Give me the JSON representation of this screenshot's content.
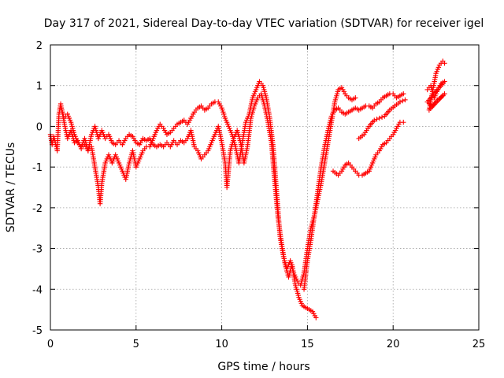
{
  "chart_data": {
    "type": "scatter",
    "title": "Day 317 of 2021, Sidereal Day-to-day VTEC variation (SDTVAR) for receiver igel",
    "xlabel": "GPS time / hours",
    "ylabel": "SDTVAR / TECUs",
    "xlim": [
      0,
      25
    ],
    "ylim": [
      -5,
      2
    ],
    "xticks": [
      0,
      5,
      10,
      15,
      20,
      25
    ],
    "yticks": [
      -5,
      -4,
      -3,
      -2,
      -1,
      0,
      1,
      2
    ],
    "xtick_labels": [
      "0",
      "5",
      "10",
      "15",
      "20",
      "25"
    ],
    "ytick_labels": [
      "-5",
      "-4",
      "-3",
      "-2",
      "-1",
      "0",
      "1",
      "2"
    ],
    "grid": true,
    "marker": "+",
    "color": "#ff0000",
    "series": [
      {
        "points": [
          [
            0.0,
            -0.2
          ],
          [
            0.1,
            -0.45
          ],
          [
            0.2,
            -0.25
          ],
          [
            0.4,
            -0.6
          ],
          [
            0.5,
            0.3
          ],
          [
            0.6,
            0.55
          ],
          [
            0.8,
            0.1
          ],
          [
            1.0,
            -0.3
          ],
          [
            1.2,
            -0.1
          ],
          [
            1.4,
            -0.4
          ],
          [
            1.6,
            -0.35
          ],
          [
            1.8,
            -0.55
          ],
          [
            2.0,
            -0.45
          ],
          [
            2.2,
            -0.6
          ],
          [
            2.4,
            -0.2
          ],
          [
            2.6,
            0.0
          ],
          [
            2.8,
            -0.3
          ],
          [
            3.0,
            -0.1
          ],
          [
            3.2,
            -0.3
          ],
          [
            3.4,
            -0.2
          ],
          [
            3.6,
            -0.4
          ],
          [
            3.8,
            -0.45
          ],
          [
            4.0,
            -0.35
          ],
          [
            4.2,
            -0.45
          ],
          [
            4.4,
            -0.3
          ],
          [
            4.6,
            -0.2
          ],
          [
            4.8,
            -0.25
          ],
          [
            5.0,
            -0.4
          ],
          [
            5.2,
            -0.45
          ],
          [
            5.4,
            -0.3
          ],
          [
            5.6,
            -0.35
          ],
          [
            5.8,
            -0.3
          ],
          [
            6.0,
            -0.45
          ],
          [
            6.2,
            -0.5
          ],
          [
            6.4,
            -0.45
          ],
          [
            6.6,
            -0.5
          ],
          [
            6.8,
            -0.4
          ],
          [
            7.0,
            -0.5
          ],
          [
            7.2,
            -0.35
          ],
          [
            7.4,
            -0.45
          ],
          [
            7.6,
            -0.35
          ],
          [
            7.8,
            -0.4
          ],
          [
            8.0,
            -0.3
          ],
          [
            8.2,
            -0.1
          ],
          [
            8.4,
            -0.5
          ],
          [
            8.6,
            -0.6
          ],
          [
            8.8,
            -0.8
          ],
          [
            9.0,
            -0.7
          ],
          [
            9.2,
            -0.6
          ],
          [
            9.4,
            -0.4
          ],
          [
            9.6,
            -0.2
          ],
          [
            9.8,
            0.0
          ],
          [
            10.0,
            -0.4
          ],
          [
            10.2,
            -0.9
          ],
          [
            10.3,
            -1.5
          ],
          [
            10.5,
            -0.6
          ],
          [
            10.7,
            -0.3
          ],
          [
            10.9,
            -0.1
          ],
          [
            11.1,
            -0.4
          ],
          [
            11.3,
            -0.9
          ],
          [
            11.5,
            -0.5
          ],
          [
            11.7,
            0.2
          ],
          [
            11.9,
            0.5
          ],
          [
            12.1,
            0.7
          ],
          [
            12.3,
            0.8
          ],
          [
            12.5,
            0.5
          ],
          [
            12.7,
            0.1
          ],
          [
            12.9,
            -0.4
          ],
          [
            13.1,
            -1.4
          ],
          [
            13.3,
            -2.3
          ],
          [
            13.5,
            -2.9
          ],
          [
            13.7,
            -3.4
          ],
          [
            13.9,
            -3.7
          ],
          [
            14.1,
            -3.4
          ],
          [
            14.3,
            -3.9
          ],
          [
            14.5,
            -4.2
          ],
          [
            14.7,
            -4.4
          ],
          [
            14.9,
            -4.45
          ],
          [
            15.1,
            -4.5
          ],
          [
            15.3,
            -4.55
          ],
          [
            15.5,
            -4.7
          ]
        ]
      },
      {
        "points": [
          [
            0.6,
            0.5
          ],
          [
            0.8,
            0.2
          ],
          [
            1.0,
            0.3
          ],
          [
            1.2,
            0.1
          ],
          [
            1.4,
            -0.2
          ],
          [
            1.6,
            -0.4
          ],
          [
            1.8,
            -0.5
          ],
          [
            2.0,
            -0.3
          ],
          [
            2.2,
            -0.6
          ],
          [
            2.4,
            -0.5
          ],
          [
            2.6,
            -1.0
          ],
          [
            2.8,
            -1.5
          ],
          [
            2.9,
            -1.9
          ],
          [
            3.0,
            -1.4
          ],
          [
            3.2,
            -0.9
          ],
          [
            3.4,
            -0.7
          ],
          [
            3.6,
            -0.9
          ],
          [
            3.8,
            -0.7
          ],
          [
            4.0,
            -0.9
          ],
          [
            4.2,
            -1.1
          ],
          [
            4.4,
            -1.3
          ],
          [
            4.6,
            -0.9
          ],
          [
            4.8,
            -0.6
          ],
          [
            5.0,
            -1.0
          ],
          [
            5.2,
            -0.8
          ],
          [
            5.4,
            -0.6
          ],
          [
            5.6,
            -0.5
          ],
          [
            5.8,
            -0.5
          ],
          [
            6.0,
            -0.3
          ],
          [
            6.2,
            -0.1
          ],
          [
            6.4,
            0.05
          ],
          [
            6.6,
            -0.05
          ],
          [
            6.8,
            -0.2
          ],
          [
            7.0,
            -0.15
          ],
          [
            7.2,
            -0.05
          ],
          [
            7.4,
            0.05
          ],
          [
            7.6,
            0.1
          ],
          [
            7.8,
            0.15
          ],
          [
            8.0,
            0.05
          ],
          [
            8.2,
            0.2
          ],
          [
            8.4,
            0.35
          ],
          [
            8.6,
            0.45
          ],
          [
            8.8,
            0.5
          ],
          [
            9.0,
            0.4
          ],
          [
            9.2,
            0.45
          ],
          [
            9.4,
            0.55
          ],
          [
            9.6,
            0.6
          ],
          [
            9.8,
            0.6
          ],
          [
            10.0,
            0.45
          ],
          [
            10.2,
            0.2
          ],
          [
            10.4,
            0.0
          ],
          [
            10.6,
            -0.2
          ],
          [
            10.8,
            -0.5
          ],
          [
            11.0,
            -0.9
          ],
          [
            11.2,
            -0.4
          ],
          [
            11.4,
            0.1
          ],
          [
            11.6,
            0.3
          ],
          [
            11.8,
            0.7
          ],
          [
            12.0,
            0.9
          ],
          [
            12.2,
            1.1
          ],
          [
            12.4,
            1.0
          ],
          [
            12.6,
            0.7
          ],
          [
            12.8,
            0.2
          ],
          [
            13.0,
            -0.5
          ],
          [
            13.2,
            -1.6
          ],
          [
            13.4,
            -2.7
          ],
          [
            13.6,
            -3.2
          ],
          [
            13.8,
            -3.5
          ],
          [
            14.0,
            -3.3
          ],
          [
            14.2,
            -3.6
          ],
          [
            14.4,
            -3.8
          ],
          [
            14.6,
            -3.9
          ],
          [
            14.8,
            -3.6
          ],
          [
            15.0,
            -3.0
          ],
          [
            15.2,
            -2.5
          ],
          [
            15.4,
            -2.2
          ],
          [
            15.6,
            -1.8
          ],
          [
            15.8,
            -1.4
          ],
          [
            16.0,
            -0.9
          ],
          [
            16.2,
            -0.4
          ],
          [
            16.4,
            0.1
          ],
          [
            16.6,
            0.6
          ],
          [
            16.8,
            0.9
          ],
          [
            17.0,
            0.95
          ],
          [
            17.2,
            0.8
          ],
          [
            17.4,
            0.7
          ],
          [
            17.6,
            0.65
          ],
          [
            17.8,
            0.7
          ]
        ]
      },
      {
        "points": [
          [
            14.8,
            -4.0
          ],
          [
            15.0,
            -3.3
          ],
          [
            15.2,
            -2.8
          ],
          [
            15.4,
            -2.2
          ],
          [
            15.6,
            -1.6
          ],
          [
            15.8,
            -1.0
          ],
          [
            16.0,
            -0.5
          ],
          [
            16.2,
            -0.1
          ],
          [
            16.4,
            0.25
          ],
          [
            16.6,
            0.4
          ],
          [
            16.8,
            0.45
          ],
          [
            17.0,
            0.35
          ],
          [
            17.2,
            0.3
          ],
          [
            17.4,
            0.35
          ],
          [
            17.6,
            0.4
          ],
          [
            17.8,
            0.45
          ],
          [
            18.0,
            0.4
          ],
          [
            18.2,
            0.45
          ],
          [
            18.4,
            0.5
          ],
          [
            18.6,
            0.5
          ],
          [
            18.8,
            0.45
          ],
          [
            19.0,
            0.55
          ],
          [
            19.2,
            0.6
          ],
          [
            19.4,
            0.7
          ],
          [
            19.6,
            0.75
          ],
          [
            19.8,
            0.8
          ],
          [
            20.0,
            0.8
          ],
          [
            20.2,
            0.7
          ],
          [
            20.4,
            0.75
          ],
          [
            20.6,
            0.8
          ]
        ]
      },
      {
        "points": [
          [
            16.5,
            -1.1
          ],
          [
            16.8,
            -1.2
          ],
          [
            17.0,
            -1.1
          ],
          [
            17.2,
            -0.95
          ],
          [
            17.4,
            -0.9
          ],
          [
            17.6,
            -1.0
          ],
          [
            17.8,
            -1.1
          ],
          [
            18.0,
            -1.2
          ],
          [
            18.2,
            -1.2
          ],
          [
            18.4,
            -1.15
          ],
          [
            18.6,
            -1.1
          ],
          [
            18.8,
            -0.9
          ],
          [
            19.0,
            -0.7
          ],
          [
            19.2,
            -0.6
          ],
          [
            19.4,
            -0.45
          ],
          [
            19.6,
            -0.4
          ],
          [
            19.8,
            -0.3
          ],
          [
            20.0,
            -0.2
          ],
          [
            20.2,
            -0.05
          ],
          [
            20.4,
            0.1
          ],
          [
            20.6,
            0.1
          ]
        ]
      },
      {
        "points": [
          [
            18.0,
            -0.3
          ],
          [
            18.3,
            -0.2
          ],
          [
            18.6,
            0.0
          ],
          [
            18.9,
            0.15
          ],
          [
            19.2,
            0.2
          ],
          [
            19.5,
            0.25
          ],
          [
            19.8,
            0.4
          ],
          [
            20.1,
            0.5
          ],
          [
            20.4,
            0.6
          ],
          [
            20.7,
            0.65
          ]
        ]
      },
      {
        "points": [
          [
            22.0,
            0.9
          ],
          [
            22.2,
            1.0
          ],
          [
            22.4,
            0.7
          ],
          [
            22.6,
            0.9
          ],
          [
            22.8,
            1.05
          ],
          [
            23.0,
            1.1
          ],
          [
            22.0,
            0.6
          ],
          [
            22.3,
            0.5
          ],
          [
            22.6,
            0.65
          ],
          [
            22.9,
            0.75
          ],
          [
            23.0,
            0.8
          ],
          [
            22.1,
            0.4
          ],
          [
            22.5,
            1.3
          ],
          [
            22.7,
            1.5
          ],
          [
            22.9,
            1.6
          ],
          [
            23.0,
            1.55
          ]
        ]
      }
    ]
  }
}
